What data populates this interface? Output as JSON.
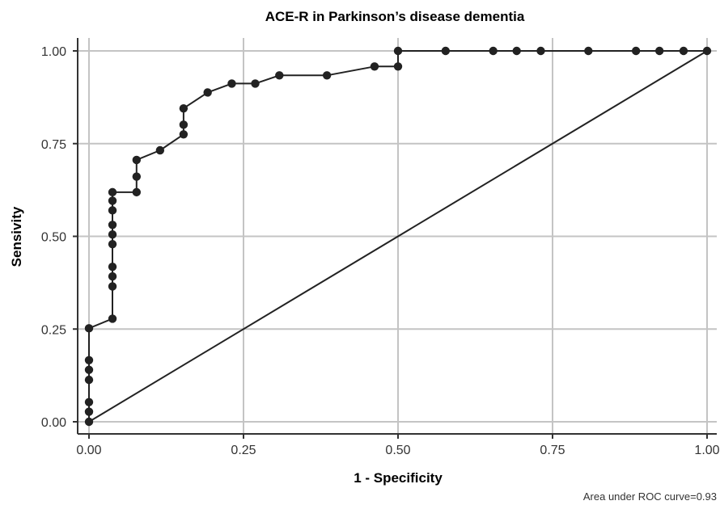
{
  "chart_data": {
    "type": "line",
    "title": "ACE-R in Parkinson’s disease dementia",
    "xlabel": "1 - Specificity",
    "ylabel": "Sensivity",
    "xlim": [
      0,
      1
    ],
    "ylim": [
      0,
      1
    ],
    "x_ticks": [
      "0.00",
      "0.25",
      "0.50",
      "0.75",
      "1.00"
    ],
    "y_ticks": [
      "0.00",
      "0.25",
      "0.50",
      "0.75",
      "1.00"
    ],
    "grid": true,
    "annotation": "Area under ROC curve=0.93",
    "series": [
      {
        "points": [
          [
            0.0,
            0.0
          ],
          [
            0.0,
            0.027
          ],
          [
            0.0,
            0.053
          ],
          [
            0.0,
            0.113
          ],
          [
            0.0,
            0.14
          ],
          [
            0.0,
            0.166
          ],
          [
            0.0,
            0.252
          ],
          [
            0.038,
            0.278
          ],
          [
            0.038,
            0.365
          ],
          [
            0.038,
            0.392
          ],
          [
            0.038,
            0.418
          ],
          [
            0.038,
            0.479
          ],
          [
            0.038,
            0.505
          ],
          [
            0.038,
            0.531
          ],
          [
            0.038,
            0.57
          ],
          [
            0.038,
            0.596
          ],
          [
            0.038,
            0.619
          ],
          [
            0.077,
            0.619
          ],
          [
            0.077,
            0.661
          ],
          [
            0.077,
            0.706
          ],
          [
            0.115,
            0.732
          ],
          [
            0.153,
            0.775
          ],
          [
            0.153,
            0.801
          ],
          [
            0.153,
            0.845
          ],
          [
            0.192,
            0.888
          ],
          [
            0.231,
            0.912
          ],
          [
            0.269,
            0.912
          ],
          [
            0.308,
            0.934
          ],
          [
            0.385,
            0.934
          ],
          [
            0.462,
            0.958
          ],
          [
            0.5,
            0.958
          ],
          [
            0.5,
            1.0
          ],
          [
            0.577,
            1.0
          ],
          [
            0.654,
            1.0
          ],
          [
            0.692,
            1.0
          ],
          [
            0.731,
            1.0
          ],
          [
            0.808,
            1.0
          ],
          [
            0.885,
            1.0
          ],
          [
            0.923,
            1.0
          ],
          [
            0.962,
            1.0
          ],
          [
            1.0,
            1.0
          ]
        ]
      },
      {
        "reference_line": true,
        "points": [
          [
            0,
            0
          ],
          [
            1,
            1
          ]
        ]
      }
    ]
  }
}
